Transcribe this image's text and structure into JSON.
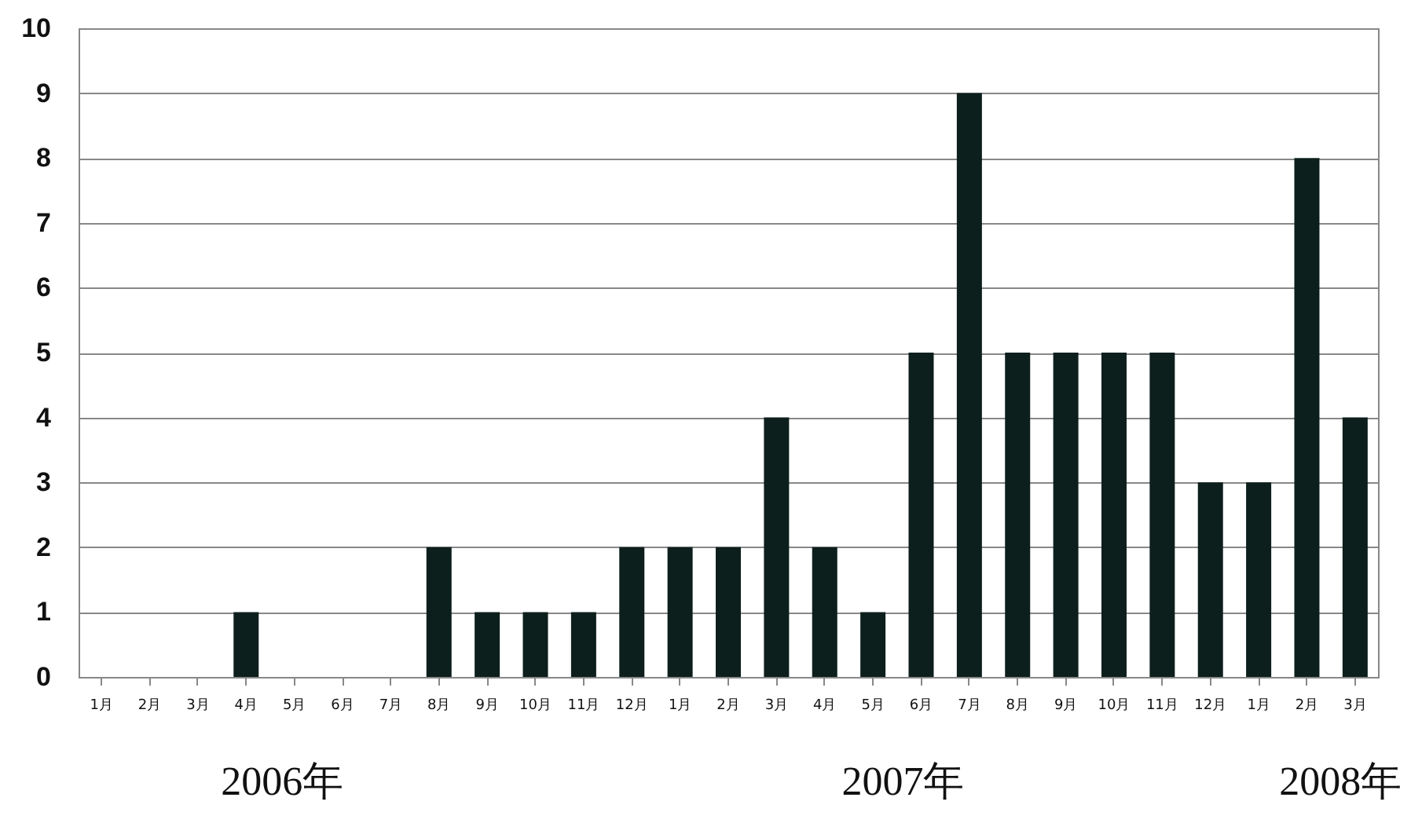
{
  "chart_data": {
    "type": "bar",
    "categories": [
      "1月",
      "2月",
      "3月",
      "4月",
      "5月",
      "6月",
      "7月",
      "8月",
      "9月",
      "10月",
      "11月",
      "12月",
      "1月",
      "2月",
      "3月",
      "4月",
      "5月",
      "6月",
      "7月",
      "8月",
      "9月",
      "10月",
      "11月",
      "12月",
      "1月",
      "2月",
      "3月"
    ],
    "values": [
      0,
      0,
      0,
      1,
      0,
      0,
      0,
      2,
      1,
      1,
      1,
      2,
      2,
      2,
      4,
      2,
      1,
      5,
      9,
      5,
      5,
      5,
      5,
      3,
      3,
      8,
      4
    ],
    "color": "#0d1f1c",
    "ylim": [
      0,
      10
    ],
    "yticks": [
      0,
      1,
      2,
      3,
      4,
      5,
      6,
      7,
      8,
      9,
      10
    ],
    "grid": "y",
    "annotations": [
      "2006年",
      "2007年",
      "2008年"
    ]
  }
}
